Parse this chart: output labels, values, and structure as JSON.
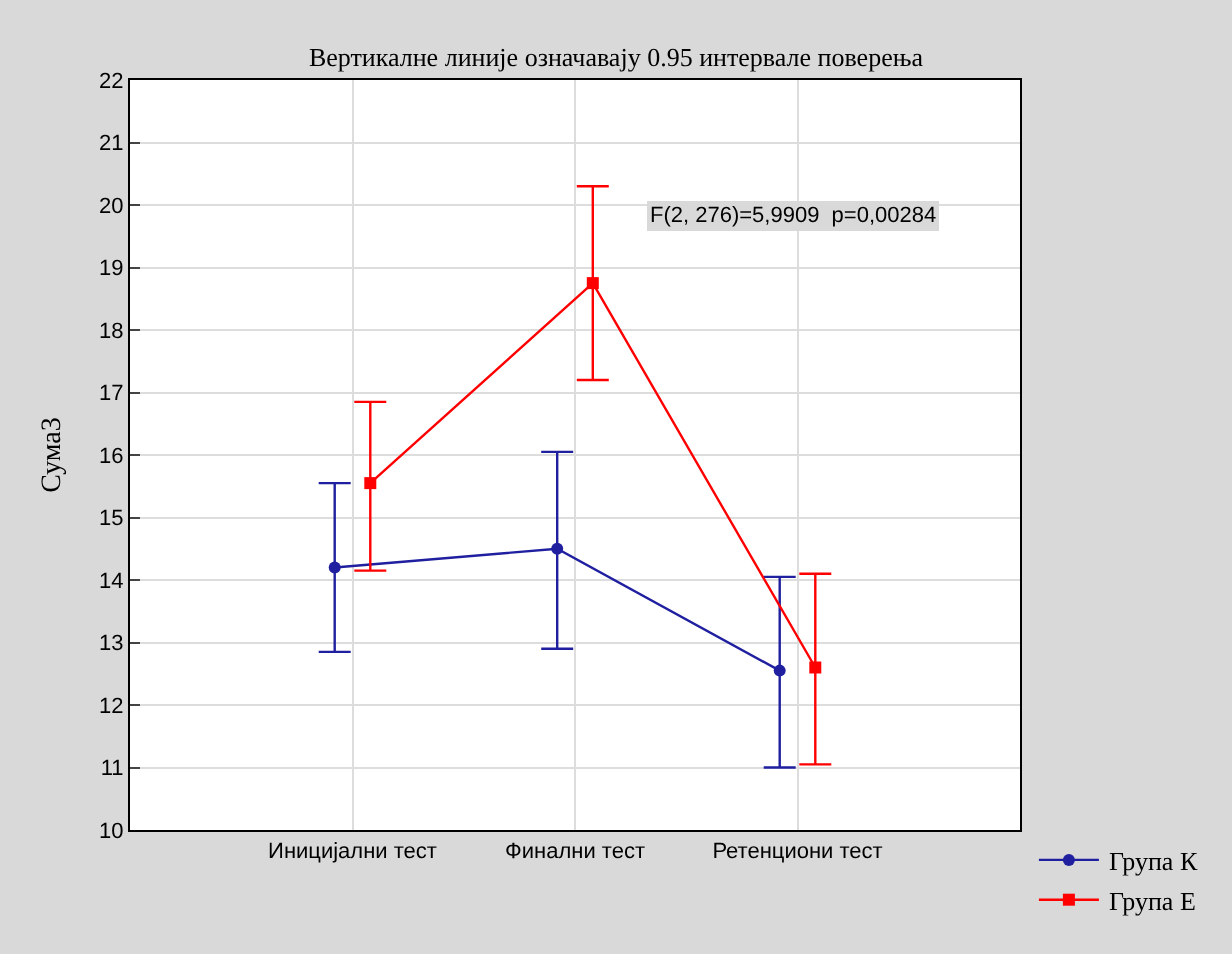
{
  "chart_data": {
    "type": "line",
    "title": "Вертикалне линије означавају 0.95 интервале поверења",
    "ylabel": "Сума3",
    "categories": [
      "Иницијални тест",
      "Финални тест",
      "Ретенциони тест"
    ],
    "series": [
      {
        "name": "Група К",
        "color": "#1f1fa0",
        "values": [
          14.2,
          14.5,
          12.55
        ],
        "errors": [
          [
            12.85,
            15.55
          ],
          [
            12.9,
            16.05
          ],
          [
            11.0,
            14.05
          ]
        ],
        "marker": "circle"
      },
      {
        "name": "Група Е",
        "color": "#ff0000",
        "values": [
          15.55,
          18.75,
          12.6
        ],
        "errors": [
          [
            14.15,
            16.85
          ],
          [
            17.2,
            20.3
          ],
          [
            11.05,
            14.1
          ]
        ],
        "marker": "square"
      }
    ],
    "ylim": [
      10,
      22
    ],
    "yticks": [
      10,
      11,
      12,
      13,
      14,
      15,
      16,
      17,
      18,
      19,
      20,
      21,
      22
    ],
    "grid": true,
    "legend": "bottom right",
    "line_style": "solid",
    "annotations": [
      "F(2, 276)=5,9909  p=0,00284"
    ]
  }
}
